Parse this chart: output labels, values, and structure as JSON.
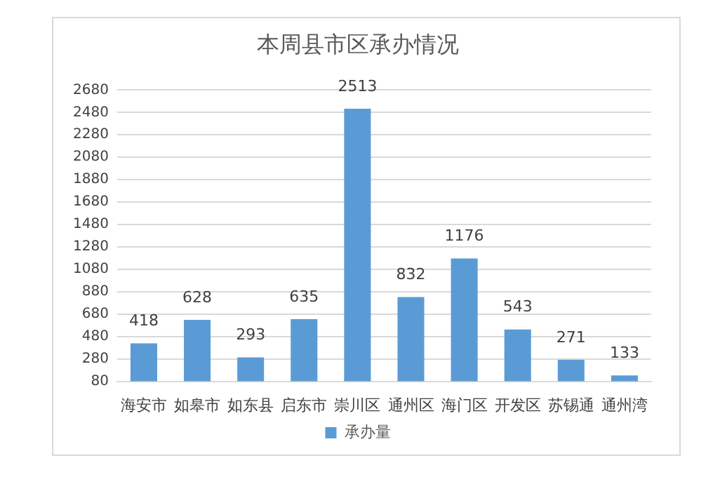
{
  "chart_data": {
    "type": "bar",
    "title": "本周县市区承办情况",
    "categories": [
      "海安市",
      "如皋市",
      "如东县",
      "启东市",
      "崇川区",
      "通州区",
      "海门区",
      "开发区",
      "苏锡通",
      "通州湾"
    ],
    "series": [
      {
        "name": "承办量",
        "color": "#5b9bd5",
        "values": [
          418,
          628,
          293,
          635,
          2513,
          832,
          1176,
          543,
          271,
          133
        ]
      }
    ],
    "ylim": [
      80,
      2680
    ],
    "yticks": [
      80,
      280,
      480,
      680,
      880,
      1080,
      1280,
      1480,
      1680,
      1880,
      2080,
      2280,
      2480,
      2680
    ],
    "grid": "y",
    "legend": "bottom",
    "data_labels": true
  }
}
